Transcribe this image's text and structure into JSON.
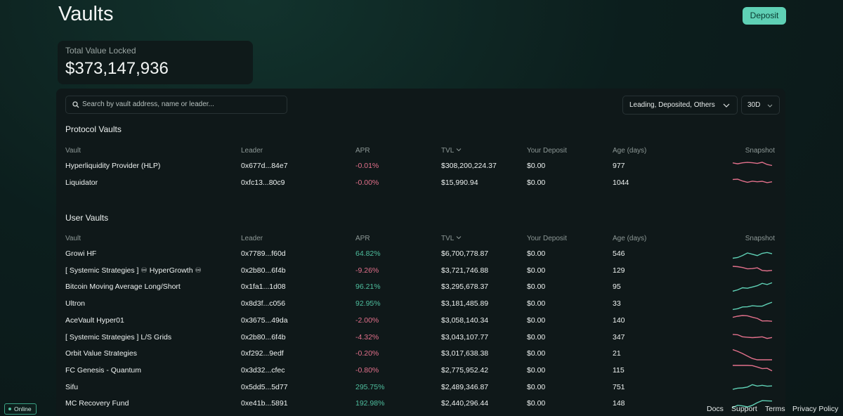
{
  "header": {
    "title": "Vaults",
    "deposit_button": "Deposit"
  },
  "tvl": {
    "label": "Total Value Locked",
    "value": "$373,147,936"
  },
  "search": {
    "placeholder": "Search by vault address, name or leader..."
  },
  "filters": {
    "group": "Leading, Deposited, Others",
    "period": "30D"
  },
  "columns": [
    "Vault",
    "Leader",
    "APR",
    "TVL",
    "Your Deposit",
    "Age (days)",
    "Snapshot"
  ],
  "protocol_vaults": {
    "title": "Protocol Vaults",
    "rows": [
      [
        "Hyperliquidity Provider (HLP)",
        "0x677d...84e7",
        "-0.01%",
        "$308,200,224.37",
        "$0.00",
        "977"
      ],
      [
        "Liquidator",
        "0xfc13...80c9",
        "-0.00%",
        "$15,990.94",
        "$0.00",
        "1044"
      ]
    ]
  },
  "user_vaults": {
    "title": "User Vaults",
    "rows": [
      [
        "Growi HF",
        "0x7789...f60d",
        "64.82%",
        "$6,700,778.87",
        "$0.00",
        "546"
      ],
      [
        "[ Systemic Strategies ] ♾ HyperGrowth ♾",
        "0x2b80...6f4b",
        "-9.26%",
        "$3,721,746.88",
        "$0.00",
        "129"
      ],
      [
        "Bitcoin Moving Average Long/Short",
        "0x1fa1...1d08",
        "96.21%",
        "$3,295,678.37",
        "$0.00",
        "95"
      ],
      [
        "Ultron",
        "0x8d3f...c056",
        "92.95%",
        "$3,181,485.89",
        "$0.00",
        "33"
      ],
      [
        "AceVault Hyper01",
        "0x3675...49da",
        "-2.00%",
        "$3,058,140.34",
        "$0.00",
        "140"
      ],
      [
        "[ Systemic Strategies ] L/S Grids",
        "0x2b80...6f4b",
        "-4.32%",
        "$3,043,107.77",
        "$0.00",
        "347"
      ],
      [
        "Orbit Value Strategies",
        "0xf292...9edf",
        "-0.20%",
        "$3,017,638.38",
        "$0.00",
        "21"
      ],
      [
        "FC Genesis - Quantum",
        "0x3d32...cfec",
        "-0.80%",
        "$2,775,952.42",
        "$0.00",
        "115"
      ],
      [
        "Sifu",
        "0x5dd5...5d77",
        "295.75%",
        "$2,489,346.87",
        "$0.00",
        "751"
      ],
      [
        "MC Recovery Fund",
        "0xe41b...5891",
        "192.98%",
        "$2,440,296.44",
        "$0.00",
        "148"
      ]
    ]
  },
  "status": "Online",
  "footer_links": [
    "Docs",
    "Support",
    "Terms",
    "Privacy Policy"
  ]
}
